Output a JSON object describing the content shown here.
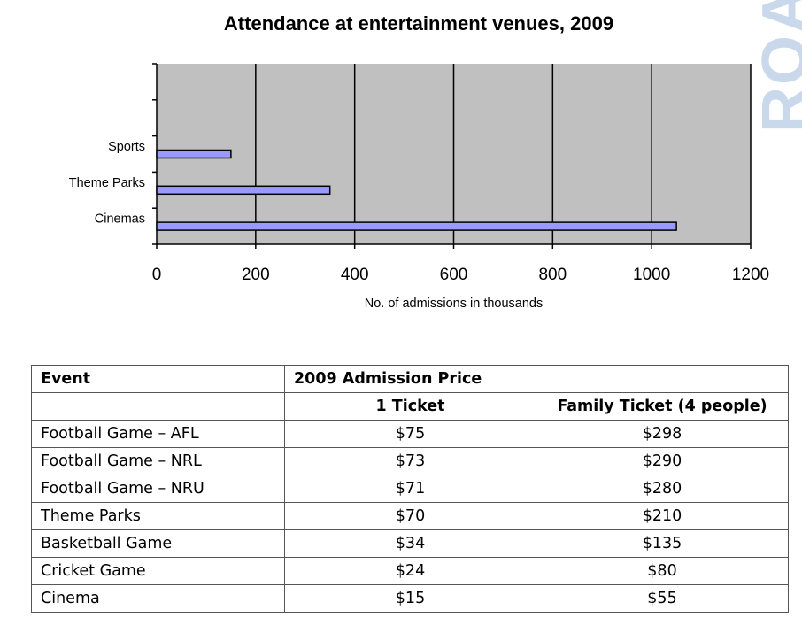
{
  "chart_data": {
    "type": "bar",
    "orientation": "horizontal",
    "title": "Attendance at entertainment venues, 2009",
    "xlabel": "No. of admissions in thousands",
    "ylabel": "",
    "categories": [
      "Sports",
      "Theme Parks",
      "Cinemas"
    ],
    "values": [
      150,
      350,
      1050
    ],
    "xlim": [
      0,
      1200
    ],
    "xticks": [
      0,
      200,
      400,
      600,
      800,
      1000,
      1200
    ],
    "grid": "vertical",
    "legend": "none",
    "bar_color": "#9999ff",
    "plot_background": "#c0c0c0"
  },
  "watermark": "ROA",
  "table": {
    "header_event": "Event",
    "header_price": "2009 Admission Price",
    "subheader_single": "1 Ticket",
    "subheader_family": "Family Ticket (4 people)",
    "rows": [
      {
        "event": "Football Game – AFL",
        "single": "$75",
        "family": "$298"
      },
      {
        "event": "Football Game – NRL",
        "single": "$73",
        "family": "$290"
      },
      {
        "event": "Football Game – NRU",
        "single": "$71",
        "family": "$280"
      },
      {
        "event": "Theme Parks",
        "single": "$70",
        "family": "$210"
      },
      {
        "event": "Basketball Game",
        "single": "$34",
        "family": "$135"
      },
      {
        "event": "Cricket Game",
        "single": "$24",
        "family": "$80"
      },
      {
        "event": "Cinema",
        "single": "$15",
        "family": "$55"
      }
    ]
  }
}
